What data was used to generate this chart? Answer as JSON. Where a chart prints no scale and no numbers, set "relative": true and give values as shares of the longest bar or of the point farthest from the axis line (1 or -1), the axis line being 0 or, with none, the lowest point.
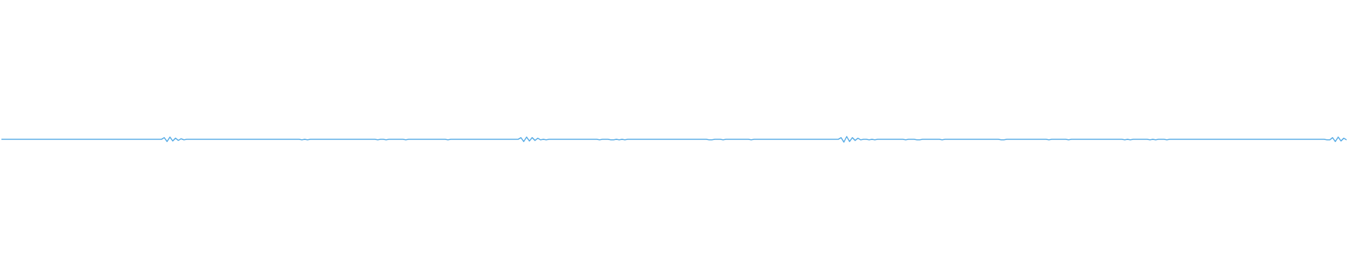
{
  "chart_data": {
    "type": "line",
    "relative": true,
    "color": "#5aade6",
    "line_style": "solid",
    "categories": [
      null,
      null,
      null,
      null,
      null,
      null,
      null,
      null,
      null,
      null,
      null,
      null,
      null,
      null,
      null,
      null,
      null,
      null,
      null,
      null,
      null,
      null,
      null,
      null,
      null,
      null,
      null,
      null,
      null,
      null,
      null,
      null,
      null,
      null,
      null,
      null,
      null,
      null,
      null,
      null,
      null,
      null,
      null,
      null,
      null,
      null,
      null,
      null,
      null,
      null,
      null,
      null,
      null,
      null,
      null,
      null,
      null,
      null,
      null,
      null,
      null,
      null,
      null,
      null,
      null,
      null,
      null,
      null,
      null,
      null,
      null,
      null,
      null,
      null,
      null,
      null,
      null,
      null,
      null,
      null,
      null,
      null,
      null,
      null,
      null,
      null,
      null,
      null,
      null,
      null,
      null,
      null,
      null,
      null,
      null,
      null,
      null,
      null,
      null,
      null,
      null,
      null,
      null,
      null,
      null,
      null,
      null,
      null,
      null,
      null,
      null,
      null,
      null,
      null,
      null,
      null,
      null,
      null,
      null,
      null,
      null,
      null,
      null,
      null,
      null,
      null,
      null,
      null,
      null,
      null,
      null,
      null,
      null,
      null,
      null,
      null,
      null,
      null,
      null,
      null,
      null,
      null,
      null,
      null,
      null,
      null,
      null,
      null,
      null,
      null,
      null,
      null,
      null,
      null,
      null,
      null,
      null,
      null,
      null,
      null,
      null,
      null,
      null,
      null,
      null,
      null,
      null,
      null,
      null,
      null,
      null,
      null,
      null,
      null,
      null,
      null,
      null,
      null,
      null,
      null,
      null,
      null,
      null,
      null,
      null,
      null,
      null,
      null,
      null,
      null,
      null,
      null,
      null,
      null,
      null,
      null,
      null,
      null,
      null,
      null,
      null,
      null,
      null,
      null,
      null,
      null,
      null,
      null,
      null,
      null,
      null,
      null,
      null,
      null,
      null,
      null,
      null,
      null,
      null,
      null,
      null,
      null,
      null,
      null,
      null,
      null,
      null,
      null,
      null,
      null,
      null,
      null,
      null,
      null,
      null,
      null,
      null,
      null,
      null,
      null,
      null,
      null,
      null,
      null,
      null,
      null,
      null,
      null,
      null,
      null,
      null,
      null,
      null,
      null,
      null,
      null,
      null,
      null,
      null,
      null,
      null,
      null,
      null,
      null,
      null,
      null,
      null,
      null,
      null,
      null,
      null,
      null,
      null,
      null,
      null,
      null,
      null,
      null,
      null,
      null,
      null,
      null,
      null,
      null,
      null,
      null,
      null,
      null,
      null,
      null,
      null,
      null,
      null,
      null,
      null,
      null,
      null,
      null,
      null,
      null,
      null,
      null,
      null,
      null,
      null,
      null,
      null,
      null,
      null,
      null,
      null,
      null,
      null,
      null,
      null,
      null,
      null,
      null,
      null,
      null,
      null,
      null,
      null,
      null,
      null,
      null,
      null,
      null,
      null,
      null,
      null,
      null,
      null,
      null,
      null,
      null,
      null,
      null,
      null,
      null,
      null,
      null,
      null,
      null,
      null,
      null,
      null,
      null,
      null,
      null,
      null,
      null,
      null,
      null,
      null,
      null,
      null,
      null,
      null,
      null,
      null,
      null,
      null,
      null,
      null,
      null,
      null,
      null,
      null,
      null,
      null,
      null,
      null,
      null,
      null,
      null,
      null,
      null,
      null,
      null,
      null,
      null,
      null,
      null,
      null,
      null,
      null,
      null,
      null,
      null,
      null,
      null,
      null,
      null,
      null,
      null,
      null,
      null,
      null,
      null,
      null,
      null,
      null,
      null,
      null,
      null,
      null,
      null,
      null,
      null,
      null,
      null,
      null,
      null,
      null,
      null,
      null,
      null,
      null,
      null,
      null,
      null,
      null,
      null,
      null,
      null,
      null,
      null,
      null,
      null,
      null,
      null,
      null,
      null,
      null,
      null,
      null,
      null,
      null,
      null,
      null,
      null,
      null,
      null,
      null,
      null,
      null,
      null,
      null,
      null,
      null,
      null,
      null,
      null,
      null,
      null,
      null,
      null,
      null,
      null,
      null,
      null,
      null,
      null,
      null,
      null,
      null,
      null,
      null,
      null,
      null,
      null,
      null,
      null,
      null,
      null,
      null,
      null,
      null,
      null
    ],
    "values": [
      0.5,
      0.5,
      0.5,
      0.5,
      0.5,
      0.5,
      0.5,
      0.5,
      0.5,
      0.5,
      0.5,
      0.5,
      0.5,
      0.5,
      0.5,
      0.5,
      0.5,
      0.5,
      0.5,
      0.5,
      0.5,
      0.5,
      0.5,
      0.5,
      0.5,
      0.5,
      0.5,
      0.5,
      0.5,
      0.5,
      0.5,
      0.5,
      0.5,
      0.5,
      0.5,
      0.5,
      0.5,
      0.5,
      0.5,
      0.5,
      0.5,
      0.5,
      0.5,
      0.5,
      0.5,
      0.5,
      0.5,
      0.5,
      0.5,
      0.5,
      0.5,
      0.5,
      0.5,
      0.5,
      0.5,
      0.5,
      0.5,
      0.5,
      0.8,
      0.1,
      0.9,
      0.2,
      0.7,
      0.3,
      0.6,
      0.4,
      0.5,
      0.5,
      0.5,
      0.5,
      0.5,
      0.5,
      0.5,
      0.5,
      0.5,
      0.5,
      0.5,
      0.5,
      0.5,
      0.5,
      0.5,
      0.5,
      0.5,
      0.5,
      0.5,
      0.5,
      0.5,
      0.5,
      0.5,
      0.5,
      0.5,
      0.5,
      0.5,
      0.5,
      0.5,
      0.5,
      0.5,
      0.5,
      0.5,
      0.5,
      0.5,
      0.5,
      0.5,
      0.5,
      0.5,
      0.5,
      0.5,
      0.4,
      0.5,
      0.4,
      0.5,
      0.5,
      0.5,
      0.5,
      0.5,
      0.5,
      0.5,
      0.5,
      0.5,
      0.5,
      0.5,
      0.5,
      0.5,
      0.5,
      0.5,
      0.5,
      0.5,
      0.5,
      0.5,
      0.5,
      0.5,
      0.5,
      0.5,
      0.5,
      0.4,
      0.5,
      0.5,
      0.4,
      0.5,
      0.5,
      0.5,
      0.5,
      0.5,
      0.5,
      0.4,
      0.5,
      0.5,
      0.5,
      0.5,
      0.5,
      0.5,
      0.5,
      0.5,
      0.5,
      0.5,
      0.5,
      0.5,
      0.5,
      0.5,
      0.4,
      0.5,
      0.5,
      0.5,
      0.5,
      0.5,
      0.5,
      0.5,
      0.5,
      0.5,
      0.5,
      0.5,
      0.5,
      0.5,
      0.5,
      0.5,
      0.5,
      0.5,
      0.5,
      0.5,
      0.5,
      0.5,
      0.5,
      0.5,
      0.5,
      0.5,
      0.8,
      0.1,
      0.9,
      0.2,
      0.8,
      0.3,
      0.7,
      0.4,
      0.5,
      0.4,
      0.5,
      0.5,
      0.5,
      0.5,
      0.5,
      0.5,
      0.5,
      0.5,
      0.5,
      0.5,
      0.5,
      0.5,
      0.5,
      0.5,
      0.5,
      0.5,
      0.5,
      0.5,
      0.4,
      0.5,
      0.5,
      0.5,
      0.4,
      0.4,
      0.5,
      0.4,
      0.5,
      0.4,
      0.5,
      0.5,
      0.5,
      0.5,
      0.5,
      0.5,
      0.5,
      0.5,
      0.5,
      0.5,
      0.5,
      0.5,
      0.5,
      0.5,
      0.5,
      0.5,
      0.5,
      0.5,
      0.5,
      0.5,
      0.5,
      0.5,
      0.5,
      0.5,
      0.5,
      0.5,
      0.5,
      0.5,
      0.5,
      0.4,
      0.4,
      0.5,
      0.5,
      0.5,
      0.4,
      0.5,
      0.5,
      0.5,
      0.5,
      0.5,
      0.5,
      0.5,
      0.5,
      0.5,
      0.4,
      0.5,
      0.5,
      0.5,
      0.5,
      0.5,
      0.5,
      0.5,
      0.5,
      0.5,
      0.5,
      0.5,
      0.5,
      0.5,
      0.5,
      0.5,
      0.5,
      0.5,
      0.5,
      0.5,
      0.5,
      0.5,
      0.5,
      0.5,
      0.5,
      0.5,
      0.5,
      0.5,
      0.5,
      0.5,
      0.5,
      0.5,
      0.8,
      0,
      1,
      0.1,
      0.8,
      0.3,
      0.7,
      0.4,
      0.5,
      0.5,
      0.4,
      0.5,
      0.4,
      0.5,
      0.5,
      0.5,
      0.5,
      0.5,
      0.5,
      0.5,
      0.5,
      0.5,
      0.5,
      0.4,
      0.5,
      0.5,
      0.5,
      0.4,
      0.4,
      0.5,
      0.5,
      0.5,
      0.5,
      0.5,
      0.5,
      0.5,
      0.4,
      0.5,
      0.5,
      0.5,
      0.5,
      0.5,
      0.5,
      0.5,
      0.5,
      0.5,
      0.5,
      0.5,
      0.5,
      0.5,
      0.5,
      0.5,
      0.5,
      0.5,
      0.5,
      0.5,
      0.5,
      0.4,
      0.4,
      0.5,
      0.5,
      0.5,
      0.5,
      0.5,
      0.5,
      0.5,
      0.5,
      0.5,
      0.5,
      0.5,
      0.5,
      0.5,
      0.5,
      0.5,
      0.4,
      0.5,
      0.5,
      0.5,
      0.5,
      0.5,
      0.5,
      0.4,
      0.5,
      0.5,
      0.5,
      0.5,
      0.5,
      0.5,
      0.5,
      0.5,
      0.5,
      0.5,
      0.5,
      0.5,
      0.5,
      0.5,
      0.5,
      0.5,
      0.5,
      0.5,
      0.5,
      0.4,
      0.5,
      0.4,
      0.5,
      0.5,
      0.5,
      0.5,
      0.5,
      0.5,
      0.4,
      0.5,
      0.4,
      0.5,
      0.5,
      0.5,
      0.4,
      0.5,
      0.5,
      0.5,
      0.5,
      0.5,
      0.5,
      0.5,
      0.5,
      0.5,
      0.5,
      0.5,
      0.5,
      0.5,
      0.5,
      0.5,
      0.5,
      0.5,
      0.5,
      0.5,
      0.5,
      0.5,
      0.5,
      0.5,
      0.5,
      0.5,
      0.5,
      0.5,
      0.5,
      0.5,
      0.5,
      0.5,
      0.5,
      0.5,
      0.5,
      0.5,
      0.5,
      0.5,
      0.5,
      0.5,
      0.5,
      0.5,
      0.5,
      0.5,
      0.5,
      0.5,
      0.5,
      0.5,
      0.5,
      0.5,
      0.5,
      0.5,
      0.5,
      0.5,
      0.5,
      0.5,
      0.5,
      0.4,
      0.4,
      0.8,
      0.1,
      0.9,
      0.2,
      0.7,
      0.4
    ]
  }
}
